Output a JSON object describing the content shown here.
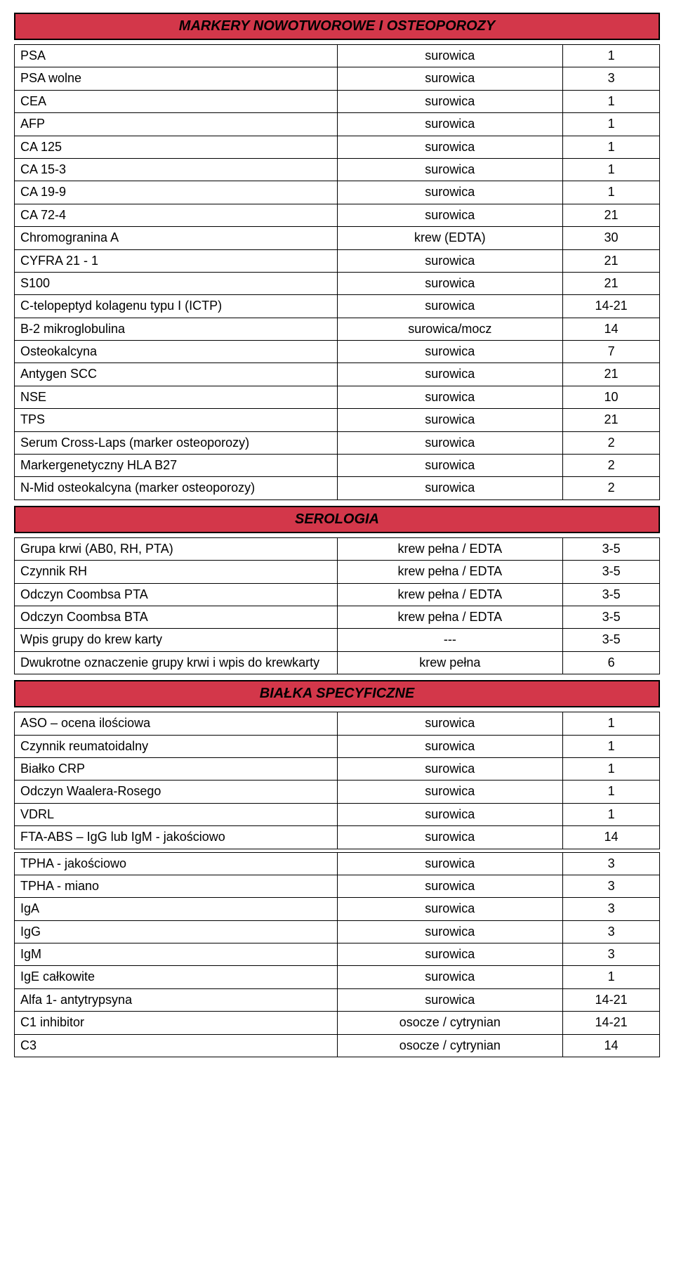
{
  "colors": {
    "header_bg": "#d3374a",
    "border": "#000000",
    "text": "#000000",
    "page_bg": "#ffffff"
  },
  "fontsize": {
    "header": 20,
    "cell": 18
  },
  "sections": [
    {
      "title": "MARKERY NOWOTWOROWE I OSTEOPOROZY",
      "groups": [
        {
          "rows": [
            {
              "name": "PSA",
              "sample": "surowica",
              "val": "1"
            },
            {
              "name": "PSA wolne",
              "sample": "surowica",
              "val": "3"
            },
            {
              "name": "CEA",
              "sample": "surowica",
              "val": "1"
            },
            {
              "name": "AFP",
              "sample": "surowica",
              "val": "1"
            },
            {
              "name": "CA 125",
              "sample": "surowica",
              "val": "1"
            },
            {
              "name": "CA 15-3",
              "sample": "surowica",
              "val": "1"
            },
            {
              "name": "CA 19-9",
              "sample": "surowica",
              "val": "1"
            },
            {
              "name": "CA 72-4",
              "sample": "surowica",
              "val": "21"
            },
            {
              "name": "Chromogranina A",
              "sample": "krew (EDTA)",
              "val": "30"
            },
            {
              "name": "CYFRA 21 - 1",
              "sample": "surowica",
              "val": "21"
            },
            {
              "name": "S100",
              "sample": "surowica",
              "val": "21"
            },
            {
              "name": "C-telopeptyd kolagenu typu I (ICTP)",
              "sample": "surowica",
              "val": "14-21"
            },
            {
              "name": "B-2 mikroglobulina",
              "sample": "surowica/mocz",
              "val": "14"
            },
            {
              "name": "Osteokalcyna",
              "sample": "surowica",
              "val": "7"
            },
            {
              "name": "Antygen SCC",
              "sample": "surowica",
              "val": "21"
            },
            {
              "name": "NSE",
              "sample": "surowica",
              "val": "10"
            },
            {
              "name": "TPS",
              "sample": "surowica",
              "val": "21"
            },
            {
              "name": "Serum Cross-Laps (marker osteoporozy)",
              "sample": "surowica",
              "val": "2"
            },
            {
              "name": "Markergenetyczny HLA B27",
              "sample": "surowica",
              "val": "2"
            },
            {
              "name": "N-Mid osteokalcyna (marker osteoporozy)",
              "sample": "surowica",
              "val": "2"
            }
          ]
        }
      ]
    },
    {
      "title": "SEROLOGIA",
      "groups": [
        {
          "rows": [
            {
              "name": "Grupa krwi (AB0, RH, PTA)",
              "sample": "krew pełna / EDTA",
              "val": "3-5"
            },
            {
              "name": "Czynnik RH",
              "sample": "krew pełna / EDTA",
              "val": "3-5"
            },
            {
              "name": "Odczyn Coombsa PTA",
              "sample": "krew pełna / EDTA",
              "val": "3-5"
            },
            {
              "name": "Odczyn Coombsa BTA",
              "sample": "krew pełna / EDTA",
              "val": "3-5"
            },
            {
              "name": "Wpis grupy do krew karty",
              "sample": "---",
              "val": "3-5"
            },
            {
              "name": "Dwukrotne oznaczenie grupy krwi i wpis do krewkarty",
              "sample": "krew pełna",
              "val": "6"
            }
          ]
        }
      ]
    },
    {
      "title": "BIAŁKA SPECYFICZNE",
      "groups": [
        {
          "rows": [
            {
              "name": "ASO – ocena ilościowa",
              "sample": "surowica",
              "val": "1"
            },
            {
              "name": "Czynnik reumatoidalny",
              "sample": "surowica",
              "val": "1"
            },
            {
              "name": "Białko CRP",
              "sample": "surowica",
              "val": "1"
            },
            {
              "name": "Odczyn Waalera-Rosego",
              "sample": "surowica",
              "val": "1"
            },
            {
              "name": "VDRL",
              "sample": "surowica",
              "val": "1"
            },
            {
              "name": "FTA-ABS – IgG lub IgM - jakościowo",
              "sample": "surowica",
              "val": "14"
            }
          ]
        },
        {
          "rows": [
            {
              "name": "TPHA - jakościowo",
              "sample": "surowica",
              "val": "3"
            },
            {
              "name": "TPHA - miano",
              "sample": "surowica",
              "val": "3"
            },
            {
              "name": "IgA",
              "sample": "surowica",
              "val": "3"
            },
            {
              "name": "IgG",
              "sample": "surowica",
              "val": "3"
            },
            {
              "name": "IgM",
              "sample": "surowica",
              "val": "3"
            },
            {
              "name": "IgE całkowite",
              "sample": "surowica",
              "val": "1"
            },
            {
              "name": "Alfa 1- antytrypsyna",
              "sample": "surowica",
              "val": "14-21"
            },
            {
              "name": "C1 inhibitor",
              "sample": "osocze / cytrynian",
              "val": "14-21"
            },
            {
              "name": "C3",
              "sample": "osocze / cytrynian",
              "val": "14"
            }
          ]
        }
      ]
    }
  ]
}
